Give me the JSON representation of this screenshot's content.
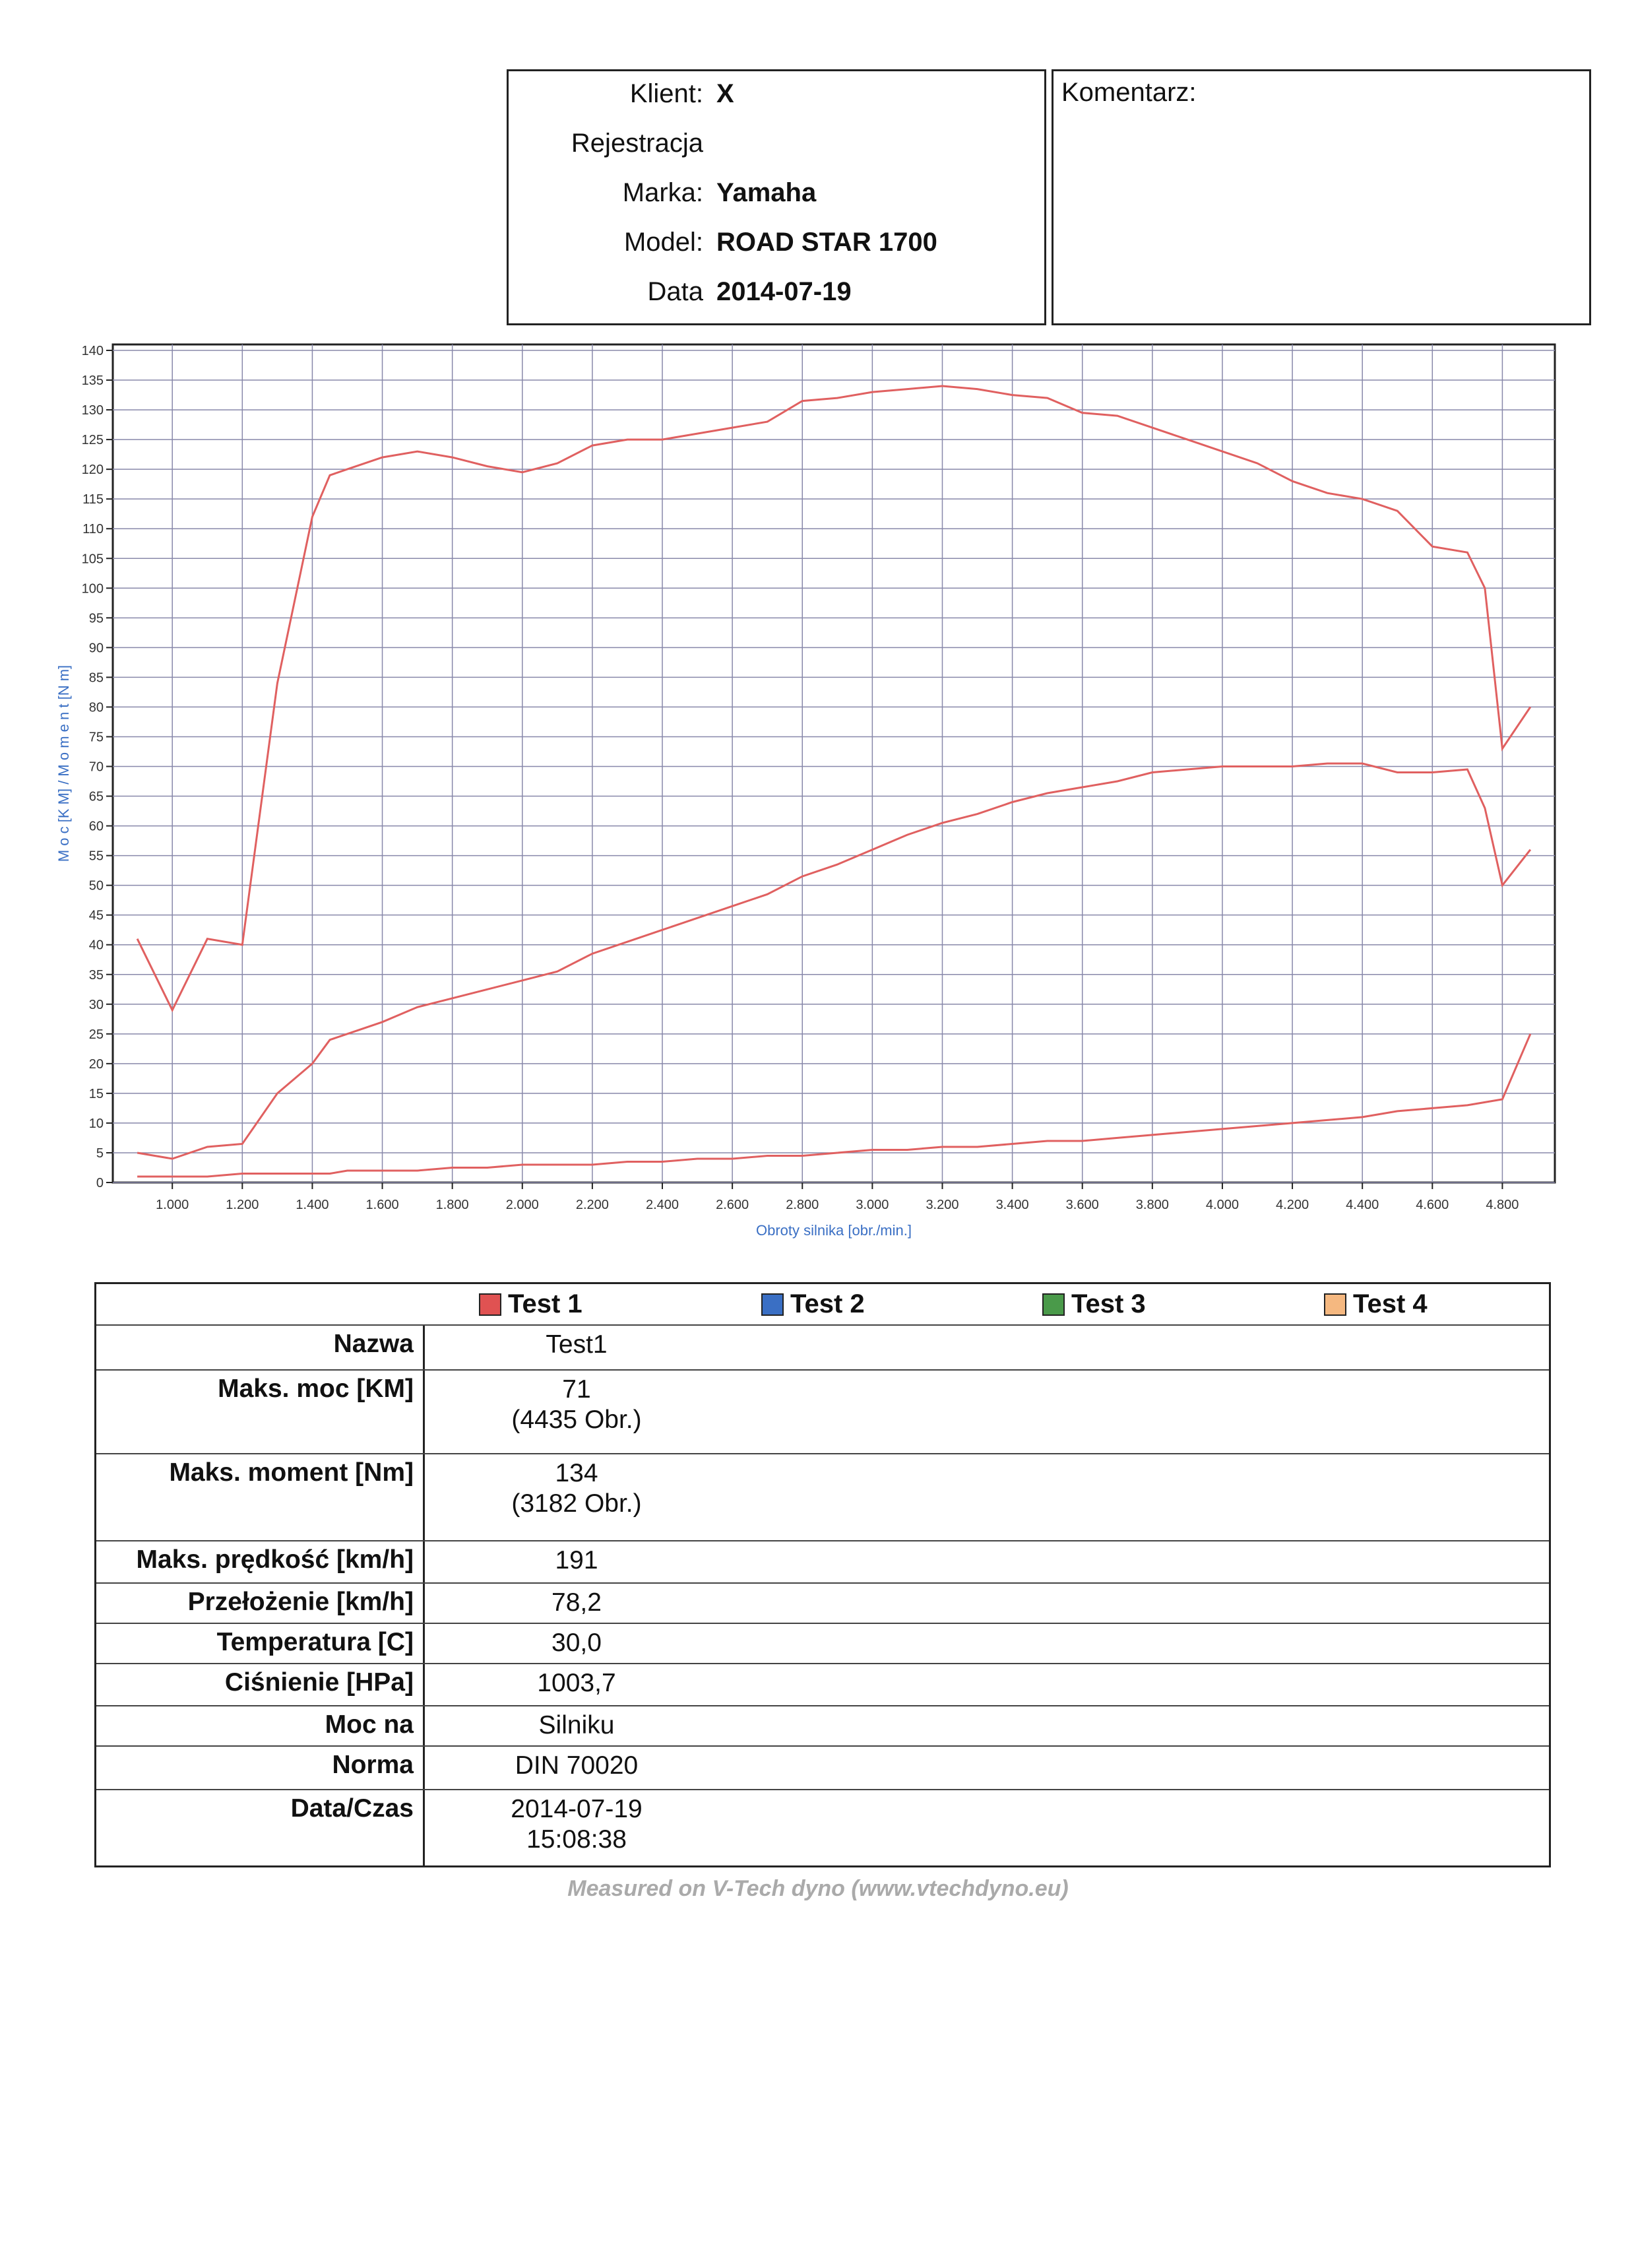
{
  "header": {
    "fields": [
      {
        "label": "Klient:",
        "value": "X"
      },
      {
        "label": "Rejestracja"
      },
      {
        "label": "Marka:",
        "value": "Yamaha"
      },
      {
        "label": "Model:",
        "value": "ROAD STAR 1700"
      },
      {
        "label": "Data",
        "value": "2014-07-19"
      }
    ],
    "comment_label": "Komentarz:"
  },
  "chart_data": {
    "type": "line",
    "xlabel": "Obroty silnika [obr./min.]",
    "ylabel": "M o c [K M] / M o m e n t [N m]",
    "x": [
      900,
      1000,
      1100,
      1200,
      1300,
      1400,
      1450,
      1500,
      1600,
      1700,
      1800,
      1900,
      2000,
      2100,
      2200,
      2300,
      2400,
      2500,
      2600,
      2700,
      2800,
      2900,
      3000,
      3100,
      3200,
      3300,
      3400,
      3500,
      3600,
      3700,
      3800,
      3900,
      4000,
      4100,
      4200,
      4300,
      4400,
      4500,
      4600,
      4700,
      4750,
      4800,
      4880
    ],
    "series": [
      {
        "color": "#e06060",
        "values": [
          41,
          29,
          41,
          40,
          84,
          112,
          119,
          120,
          122,
          123,
          122,
          120.5,
          119.5,
          121,
          124,
          125,
          125,
          126,
          127,
          128,
          131.5,
          132,
          133,
          133.5,
          134,
          133.5,
          132.5,
          132,
          129.5,
          129,
          127,
          125,
          123,
          121,
          118,
          116,
          115,
          113,
          107,
          106,
          100,
          73,
          80
        ]
      },
      {
        "color": "#e06060",
        "values": [
          5,
          4,
          6,
          6.5,
          15,
          20,
          24,
          25,
          27,
          29.5,
          31,
          32.5,
          34,
          35.5,
          38.5,
          40.5,
          42.5,
          44.5,
          46.5,
          48.5,
          51.5,
          53.5,
          56,
          58.5,
          60.5,
          62,
          64,
          65.5,
          66.5,
          67.5,
          69,
          69.5,
          70,
          70,
          70,
          70.5,
          70.5,
          69,
          69,
          69.5,
          63,
          50,
          56
        ]
      },
      {
        "color": "#e06060",
        "values": [
          1,
          1,
          1,
          1.5,
          1.5,
          1.5,
          1.5,
          2,
          2,
          2,
          2.5,
          2.5,
          3,
          3,
          3,
          3.5,
          3.5,
          4,
          4,
          4.5,
          4.5,
          5,
          5.5,
          5.5,
          6,
          6,
          6.5,
          7,
          7,
          7.5,
          8,
          8.5,
          9,
          9.5,
          10,
          10.5,
          11,
          12,
          12.5,
          13,
          13.5,
          14,
          25
        ]
      }
    ],
    "xlim": [
      830,
      4950
    ],
    "ylim": [
      0,
      141
    ],
    "xticks": [
      {
        "value": 1000,
        "label": "1.000"
      },
      {
        "value": 1200,
        "label": "1.200"
      },
      {
        "value": 1400,
        "label": "1.400"
      },
      {
        "value": 1600,
        "label": "1.600"
      },
      {
        "value": 1800,
        "label": "1.800"
      },
      {
        "value": 2000,
        "label": "2.000"
      },
      {
        "value": 2200,
        "label": "2.200"
      },
      {
        "value": 2400,
        "label": "2.400"
      },
      {
        "value": 2600,
        "label": "2.600"
      },
      {
        "value": 2800,
        "label": "2.800"
      },
      {
        "value": 3000,
        "label": "3.000"
      },
      {
        "value": 3200,
        "label": "3.200"
      },
      {
        "value": 3400,
        "label": "3.400"
      },
      {
        "value": 3600,
        "label": "3.600"
      },
      {
        "value": 3800,
        "label": "3.800"
      },
      {
        "value": 4000,
        "label": "4.000"
      },
      {
        "value": 4200,
        "label": "4.200"
      },
      {
        "value": 4400,
        "label": "4.400"
      },
      {
        "value": 4600,
        "label": "4.600"
      },
      {
        "value": 4800,
        "label": "4.800"
      }
    ],
    "yticks": [
      0,
      5,
      10,
      15,
      20,
      25,
      30,
      35,
      40,
      45,
      50,
      55,
      60,
      65,
      70,
      75,
      80,
      85,
      90,
      95,
      100,
      105,
      110,
      115,
      120,
      125,
      130,
      135,
      140
    ],
    "grid": true
  },
  "results": {
    "legend": [
      {
        "name": "Test 1",
        "color": "#e05252"
      },
      {
        "name": "Test 2",
        "color": "#3a6fc4"
      },
      {
        "name": "Test 3",
        "color": "#4a9a4a"
      },
      {
        "name": "Test 4",
        "color": "#f5b880"
      }
    ],
    "rows": [
      {
        "label": "Nazwa",
        "value": [
          "Test1"
        ]
      },
      {
        "label": "Maks. moc [KM]",
        "value": [
          "71",
          "(4435 Obr.)"
        ]
      },
      {
        "label": "Maks. moment [Nm]",
        "value": [
          "134",
          "(3182 Obr.)"
        ]
      },
      {
        "label": "Maks. prędkość [km/h]",
        "value": [
          "191"
        ]
      },
      {
        "label": "Przełożenie [km/h]",
        "value": [
          "78,2"
        ]
      },
      {
        "label": "Temperatura [C]",
        "value": [
          "30,0"
        ]
      },
      {
        "label": "Ciśnienie [HPa]",
        "value": [
          "1003,7"
        ]
      },
      {
        "label": "Moc na",
        "value": [
          "Silniku"
        ]
      },
      {
        "label": "Norma",
        "value": [
          "DIN 70020"
        ]
      },
      {
        "label": "Data/Czas",
        "value": [
          "2014-07-19",
          "15:08:38"
        ]
      }
    ]
  },
  "footer": "Measured on V-Tech dyno (www.vtechdyno.eu)"
}
